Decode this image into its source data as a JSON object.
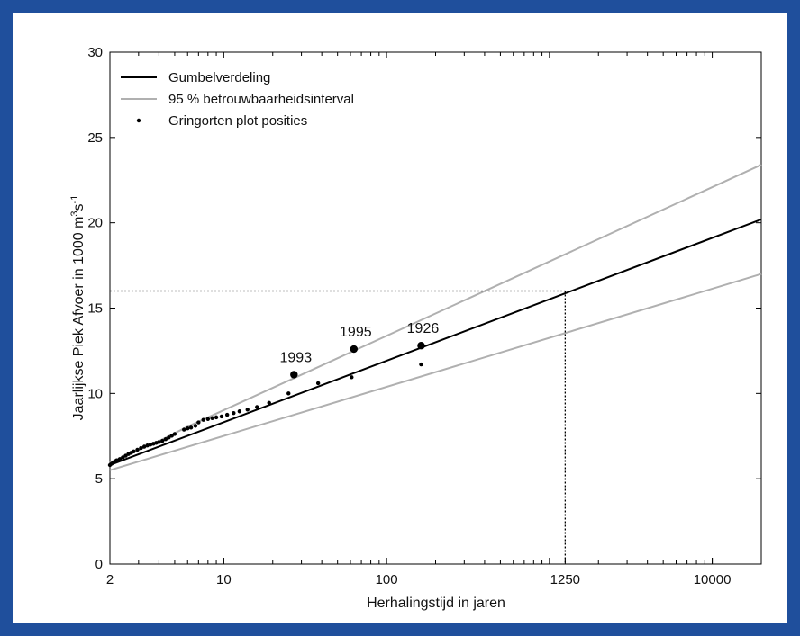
{
  "chart_data": {
    "type": "line",
    "xscale": "log",
    "xlabel": "Herhalingstijd in jaren",
    "ylabel_base": "Jaarlijkse Piek Afvoer in 1000 m",
    "ylabel_sup1": "3",
    "ylabel_mid": "s",
    "ylabel_sup2": "-1",
    "xlim": [
      2,
      20000
    ],
    "ylim": [
      0,
      30
    ],
    "xticks": [
      {
        "value": 2,
        "label": "2"
      },
      {
        "value": 10,
        "label": "10"
      },
      {
        "value": 100,
        "label": "100"
      },
      {
        "value": 1250,
        "label": "1250"
      },
      {
        "value": 10000,
        "label": "10000"
      }
    ],
    "yticks": [
      {
        "value": 0,
        "label": "0"
      },
      {
        "value": 5,
        "label": "5"
      },
      {
        "value": 10,
        "label": "10"
      },
      {
        "value": 15,
        "label": "15"
      },
      {
        "value": 20,
        "label": "20"
      },
      {
        "value": 25,
        "label": "25"
      },
      {
        "value": 30,
        "label": "30"
      }
    ],
    "legend_position": "top-left",
    "series": [
      {
        "name": "Gumbelverdeling",
        "kind": "line",
        "color": "#000000",
        "points": [
          [
            2,
            5.8
          ],
          [
            20000,
            20.2
          ]
        ]
      },
      {
        "name": "95 % betrouwbaarheidsinterval",
        "kind": "band",
        "color": "#b0b0b0",
        "upper": [
          [
            2,
            5.95
          ],
          [
            4,
            7.2
          ],
          [
            6,
            8.05
          ],
          [
            20000,
            23.4
          ]
        ],
        "lower": [
          [
            2,
            5.5
          ],
          [
            20000,
            17.0
          ]
        ]
      },
      {
        "name": "Gringorten plot posities",
        "kind": "scatter",
        "color": "#000000",
        "points": [
          [
            2.0,
            5.8
          ],
          [
            2.05,
            5.88
          ],
          [
            2.1,
            5.95
          ],
          [
            2.15,
            6.02
          ],
          [
            2.2,
            6.08
          ],
          [
            2.3,
            6.15
          ],
          [
            2.4,
            6.25
          ],
          [
            2.5,
            6.35
          ],
          [
            2.6,
            6.45
          ],
          [
            2.7,
            6.52
          ],
          [
            2.8,
            6.6
          ],
          [
            2.95,
            6.7
          ],
          [
            3.1,
            6.8
          ],
          [
            3.25,
            6.88
          ],
          [
            3.4,
            6.95
          ],
          [
            3.55,
            7.0
          ],
          [
            3.7,
            7.05
          ],
          [
            3.85,
            7.1
          ],
          [
            4.0,
            7.15
          ],
          [
            4.2,
            7.22
          ],
          [
            4.4,
            7.32
          ],
          [
            4.6,
            7.42
          ],
          [
            4.8,
            7.52
          ],
          [
            5.0,
            7.62
          ],
          [
            5.7,
            7.88
          ],
          [
            6.0,
            7.95
          ],
          [
            6.3,
            8.0
          ],
          [
            6.7,
            8.1
          ],
          [
            7.0,
            8.3
          ],
          [
            7.5,
            8.45
          ],
          [
            8.0,
            8.5
          ],
          [
            8.5,
            8.55
          ],
          [
            9.0,
            8.6
          ],
          [
            9.7,
            8.65
          ],
          [
            10.5,
            8.75
          ],
          [
            11.5,
            8.85
          ],
          [
            12.5,
            8.95
          ],
          [
            14.0,
            9.05
          ],
          [
            16.0,
            9.2
          ],
          [
            19.0,
            9.45
          ],
          [
            25.0,
            10.0
          ],
          [
            38.0,
            10.6
          ],
          [
            61.0,
            10.95
          ],
          [
            163.0,
            11.7
          ]
        ],
        "highlighted": [
          {
            "x": 27.0,
            "y": 11.1,
            "label": "1993"
          },
          {
            "x": 63.0,
            "y": 12.6,
            "label": "1995"
          },
          {
            "x": 163.0,
            "y": 12.8,
            "label": "1926"
          }
        ]
      },
      {
        "name": "reference",
        "kind": "dotted-guide",
        "color": "#000000",
        "x": 1250,
        "y": 16.0
      }
    ]
  }
}
